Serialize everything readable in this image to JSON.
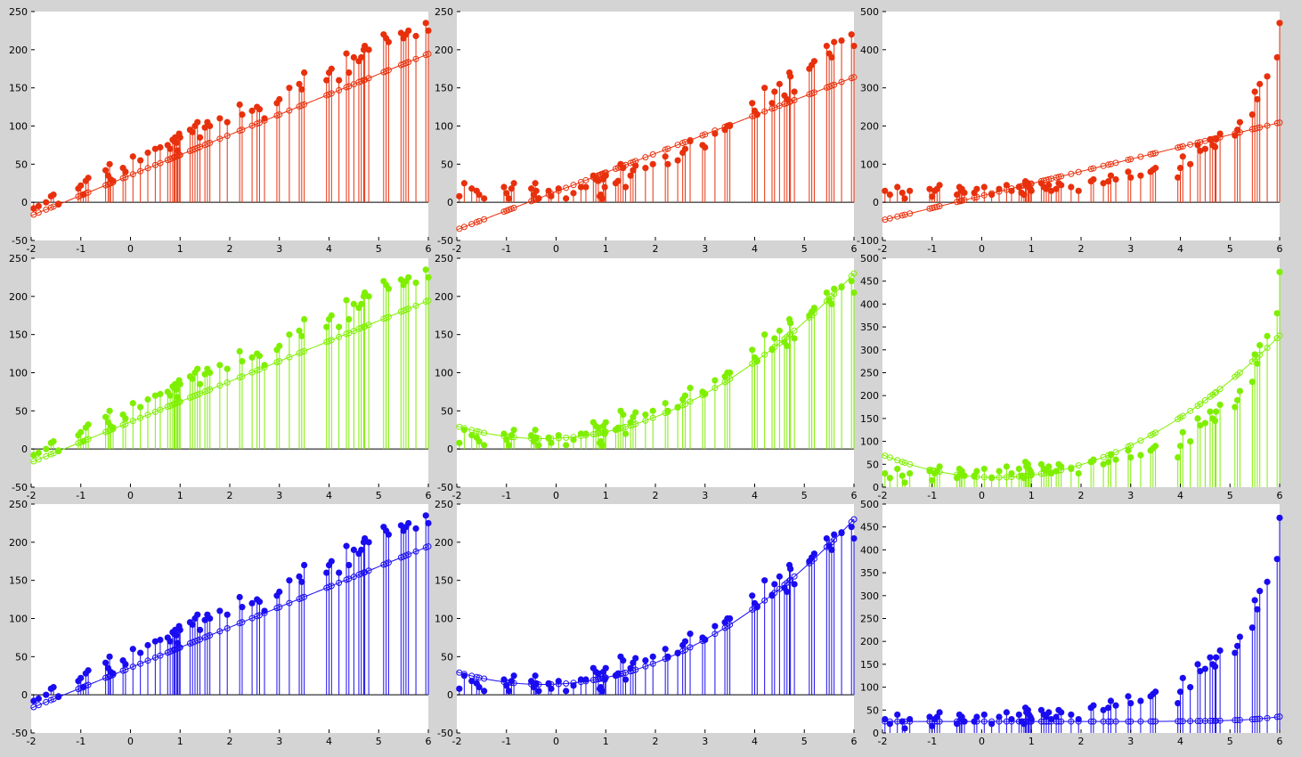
{
  "colors": {
    "red": "#e8300c",
    "green": "#7fef00",
    "blue": "#1a0cf0",
    "axis": "#000000",
    "background": "#d4d4d4"
  },
  "panels": [
    {
      "id": "r1c1",
      "color": "red",
      "xlim": [
        -2,
        6
      ],
      "ylim": [
        -50,
        250
      ],
      "xticks": [
        "-2",
        "-1",
        "0",
        "1",
        "2",
        "3",
        "4",
        "5",
        "6"
      ],
      "yticks": [
        "-50",
        "0",
        "50",
        "100",
        "150",
        "200",
        "250"
      ],
      "fit": {
        "type": "linear",
        "a": 35.5,
        "b": 26.5
      }
    },
    {
      "id": "r1c2",
      "color": "red",
      "xlim": [
        -2,
        6
      ],
      "ylim": [
        -50,
        250
      ],
      "xticks": [
        "-2",
        "-1",
        "0",
        "1",
        "2",
        "3",
        "4",
        "5",
        "6"
      ],
      "yticks": [
        "-50",
        "0",
        "50",
        "100",
        "150",
        "200",
        "250"
      ],
      "fit": {
        "type": "linear",
        "a": 14,
        "b": 25
      }
    },
    {
      "id": "r1c3",
      "color": "red",
      "xlim": [
        -2,
        6
      ],
      "ylim": [
        -100,
        500
      ],
      "xticks": [
        "-2",
        "-1",
        "0",
        "1",
        "2",
        "3",
        "4",
        "5",
        "6"
      ],
      "yticks": [
        "-100",
        "0",
        "100",
        "200",
        "300",
        "400",
        "500"
      ],
      "fit": {
        "type": "linear",
        "a": 17,
        "b": 32
      }
    },
    {
      "id": "r2c1",
      "color": "green",
      "xlim": [
        -2,
        6
      ],
      "ylim": [
        -50,
        250
      ],
      "xticks": [
        "-2",
        "-1",
        "0",
        "1",
        "2",
        "3",
        "4",
        "5",
        "6"
      ],
      "yticks": [
        "-50",
        "0",
        "50",
        "100",
        "150",
        "200",
        "250"
      ],
      "fit": {
        "type": "linear",
        "a": 35.5,
        "b": 26.5
      }
    },
    {
      "id": "r2c2",
      "color": "green",
      "xlim": [
        -2,
        6
      ],
      "ylim": [
        -50,
        250
      ],
      "xticks": [
        "-2",
        "-1",
        "0",
        "1",
        "2",
        "3",
        "4",
        "5",
        "6"
      ],
      "yticks": [
        "-50",
        "0",
        "50",
        "100",
        "150",
        "200",
        "250"
      ],
      "fit": {
        "type": "quad",
        "a": 14,
        "b": 3,
        "c": 5.5
      }
    },
    {
      "id": "r2c3",
      "color": "green",
      "xlim": [
        -2,
        6
      ],
      "ylim": [
        0,
        500
      ],
      "xticks": [
        "-2",
        "-1",
        "0",
        "1",
        "2",
        "3",
        "4",
        "5",
        "6"
      ],
      "yticks": [
        "0",
        "50",
        "100",
        "150",
        "200",
        "250",
        "300",
        "350",
        "400",
        "450",
        "500"
      ],
      "fit": {
        "type": "quad",
        "a": 22,
        "b": -5.5,
        "c": 9.5
      }
    },
    {
      "id": "r3c1",
      "color": "blue",
      "xlim": [
        -2,
        6
      ],
      "ylim": [
        -50,
        250
      ],
      "xticks": [
        "-2",
        "-1",
        "0",
        "1",
        "2",
        "3",
        "4",
        "5",
        "6"
      ],
      "yticks": [
        "-50",
        "0",
        "50",
        "100",
        "150",
        "200",
        "250"
      ],
      "fit": {
        "type": "linear",
        "a": 35.5,
        "b": 26.5
      }
    },
    {
      "id": "r3c2",
      "color": "blue",
      "xlim": [
        -2,
        6
      ],
      "ylim": [
        -50,
        250
      ],
      "xticks": [
        "-2",
        "-1",
        "0",
        "1",
        "2",
        "3",
        "4",
        "5",
        "6"
      ],
      "yticks": [
        "-50",
        "0",
        "50",
        "100",
        "150",
        "200",
        "250"
      ],
      "fit": {
        "type": "quad",
        "a": 14,
        "b": 3,
        "c": 5.5
      }
    },
    {
      "id": "r3c3",
      "color": "blue",
      "xlim": [
        -2,
        6
      ],
      "ylim": [
        0,
        500
      ],
      "xticks": [
        "-2",
        "-1",
        "0",
        "1",
        "2",
        "3",
        "4",
        "5",
        "6"
      ],
      "yticks": [
        "0",
        "50",
        "100",
        "150",
        "200",
        "250",
        "300",
        "350",
        "400",
        "450",
        "500"
      ],
      "fit": {
        "type": "exp",
        "a": 25,
        "b": 0.0015,
        "k": 1.48
      }
    }
  ],
  "chart_data": {
    "type": "scatter",
    "layout": "3x3 grid of stem plots with fitted curves",
    "grid": false,
    "observed": {
      "x": [
        -1.95,
        -1.85,
        -1.7,
        -1.6,
        -1.55,
        -1.45,
        -1.05,
        -1.0,
        -0.95,
        -0.9,
        -0.85,
        -0.5,
        -0.45,
        -0.42,
        -0.4,
        -0.35,
        -0.15,
        -0.1,
        0.05,
        0.2,
        0.35,
        0.5,
        0.6,
        0.75,
        0.8,
        0.85,
        0.88,
        0.9,
        0.93,
        0.95,
        0.98,
        1.0,
        1.2,
        1.25,
        1.3,
        1.35,
        1.4,
        1.5,
        1.55,
        1.6,
        1.8,
        1.95,
        2.2,
        2.25,
        2.45,
        2.55,
        2.6,
        2.7,
        2.95,
        3.0,
        3.2,
        3.4,
        3.45,
        3.5,
        3.95,
        4.0,
        4.05,
        4.2,
        4.35,
        4.4,
        4.5,
        4.6,
        4.65,
        4.7,
        4.72,
        4.8,
        5.1,
        5.15,
        5.2,
        5.45,
        5.5,
        5.55,
        5.6,
        5.75,
        5.95,
        6.0
      ],
      "y": [
        -8,
        -5,
        0,
        8,
        10,
        -2,
        18,
        22,
        10,
        28,
        32,
        42,
        35,
        50,
        30,
        28,
        45,
        40,
        60,
        55,
        65,
        70,
        72,
        75,
        70,
        82,
        80,
        85,
        78,
        68,
        90,
        85,
        95,
        92,
        100,
        105,
        85,
        98,
        105,
        100,
        110,
        105,
        128,
        115,
        120,
        125,
        122,
        110,
        130,
        135,
        150,
        155,
        148,
        170,
        160,
        170,
        175,
        160,
        195,
        170,
        190,
        185,
        190,
        200,
        205,
        200,
        220,
        215,
        210,
        222,
        215,
        220,
        225,
        218,
        235,
        225
      ],
      "row2_col2_y": [
        8,
        25,
        18,
        15,
        10,
        5,
        20,
        12,
        5,
        18,
        25,
        18,
        10,
        25,
        15,
        5,
        15,
        8,
        18,
        5,
        12,
        20,
        20,
        35,
        30,
        28,
        8,
        10,
        5,
        30,
        20,
        35,
        25,
        28,
        50,
        45,
        20,
        35,
        42,
        48,
        45,
        50,
        60,
        50,
        55,
        65,
        70,
        80,
        75,
        72,
        90,
        95,
        100,
        100,
        130,
        120,
        115,
        150,
        130,
        145,
        155,
        140,
        135,
        170,
        165,
        145,
        175,
        180,
        185,
        205,
        195,
        190,
        210,
        212,
        220,
        205
      ],
      "row3_col3_y": [
        30,
        20,
        40,
        25,
        10,
        30,
        35,
        15,
        30,
        35,
        45,
        20,
        40,
        30,
        35,
        25,
        25,
        35,
        40,
        20,
        35,
        45,
        30,
        40,
        25,
        20,
        55,
        45,
        50,
        40,
        35,
        30,
        50,
        40,
        35,
        45,
        30,
        35,
        50,
        45,
        40,
        30,
        55,
        60,
        50,
        55,
        70,
        60,
        80,
        65,
        70,
        80,
        85,
        90,
        65,
        90,
        120,
        100,
        150,
        135,
        140,
        165,
        150,
        145,
        165,
        180,
        175,
        190,
        210,
        230,
        290,
        270,
        310,
        330,
        380,
        470
      ]
    },
    "fits": [
      "linear: 35.5 + 26.5·x",
      "linear: 14 + 25·x",
      "linear: 17 + 32·x",
      "linear: 35.5 + 26.5·x",
      "quadratic: 14 + 3·x + 5.5·x²",
      "quadratic: 22 - 5.5·x + 9.5·x²",
      "linear: 35.5 + 26.5·x",
      "quadratic: 14 + 3·x + 5.5·x²",
      "exponential: 25 + 0.0015·e^(1.48·x)"
    ]
  }
}
